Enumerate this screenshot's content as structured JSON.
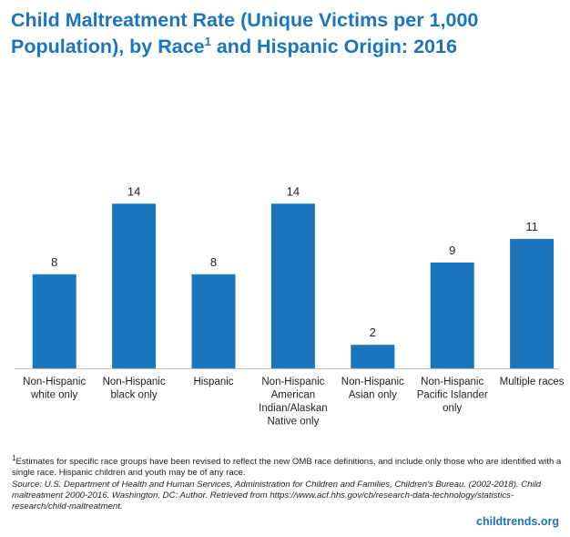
{
  "header": {
    "title_part1": "Child Maltreatment Rate (Unique Victims per 1,000 Population), by Race",
    "title_sup": "1",
    "title_part2": " and Hispanic Origin: 2016"
  },
  "chart_data": {
    "type": "bar",
    "categories": [
      "Non-Hispanic white only",
      "Non-Hispanic black only",
      "Hispanic",
      "Non-Hispanic American Indian/Alaskan Native only",
      "Non-Hispanic Asian only",
      "Non-Hispanic Pacific Islander only",
      "Multiple races"
    ],
    "category_lines": [
      [
        "Non-Hispanic",
        "white only"
      ],
      [
        "Non-Hispanic",
        "black only"
      ],
      [
        "Hispanic"
      ],
      [
        "Non-Hispanic",
        "American",
        "Indian/Alaskan",
        "Native only"
      ],
      [
        "Non-Hispanic",
        "Asian only"
      ],
      [
        "Non-Hispanic",
        "Pacific Islander",
        "only"
      ],
      [
        "Multiple races"
      ]
    ],
    "values": [
      8,
      14,
      8,
      14,
      2,
      9,
      11
    ],
    "data_labels": [
      "8",
      "14",
      "8",
      "14",
      "2",
      "9",
      "11"
    ],
    "bar_color": "#1b75bc",
    "xlabel": "",
    "ylabel": "",
    "grid": false,
    "legend": "none"
  },
  "footnotes": {
    "note_sup": "1",
    "note": "Estimates for specific race groups have been revised to reflect the new OMB race definitions, and include only those who are identified with a single race. Hispanic children and youth may be of any race.",
    "source": "Source: U.S. Department of Health and Human Services, Administration for Children and Families, Children's Bureau. (2002-2018). Child maltreatment 2000-2016. Washington, DC: Author. Retrieved from https://www.acf.hhs.gov/cb/research-data-technology/statistics-research/child-maltreatment."
  },
  "brand": {
    "text": "childtrends.org",
    "color": "#1b75bc"
  }
}
